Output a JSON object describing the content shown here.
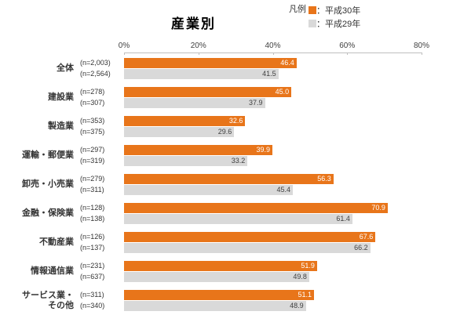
{
  "legend": {
    "heading": "凡例",
    "items": [
      {
        "label": "：平成30年",
        "color": "#E8751A"
      },
      {
        "label": "：平成29年",
        "color": "#D9D9D9"
      }
    ]
  },
  "axis": {
    "tick_labels": [
      "0%",
      "20%",
      "40%",
      "60%",
      "80%"
    ]
  },
  "chart_data": {
    "type": "bar",
    "orientation": "horizontal",
    "title": "産業別",
    "xlim": [
      0,
      80
    ],
    "x_ticks": [
      0,
      20,
      40,
      60,
      80
    ],
    "legend_position": "top-right",
    "grid": false,
    "categories": [
      "全体",
      "建設業",
      "製造業",
      "運輸・郵便業",
      "卸売・小売業",
      "金融・保険業",
      "不動産業",
      "情報通信業",
      "サービス業・\nその他"
    ],
    "n_labels": {
      "h30": [
        "(n=2,003)",
        "(n=278)",
        "(n=353)",
        "(n=297)",
        "(n=279)",
        "(n=128)",
        "(n=126)",
        "(n=231)",
        "(n=311)"
      ],
      "h29": [
        "(n=2,564)",
        "(n=307)",
        "(n=375)",
        "(n=319)",
        "(n=311)",
        "(n=138)",
        "(n=137)",
        "(n=637)",
        "(n=340)"
      ]
    },
    "series": [
      {
        "name": "平成30年",
        "color": "#E8751A",
        "values": [
          46.4,
          45.0,
          32.6,
          39.9,
          56.3,
          70.9,
          67.6,
          51.9,
          51.1
        ]
      },
      {
        "name": "平成29年",
        "color": "#D9D9D9",
        "values": [
          41.5,
          37.9,
          29.6,
          33.2,
          45.4,
          61.4,
          66.2,
          49.8,
          48.9
        ]
      }
    ]
  }
}
